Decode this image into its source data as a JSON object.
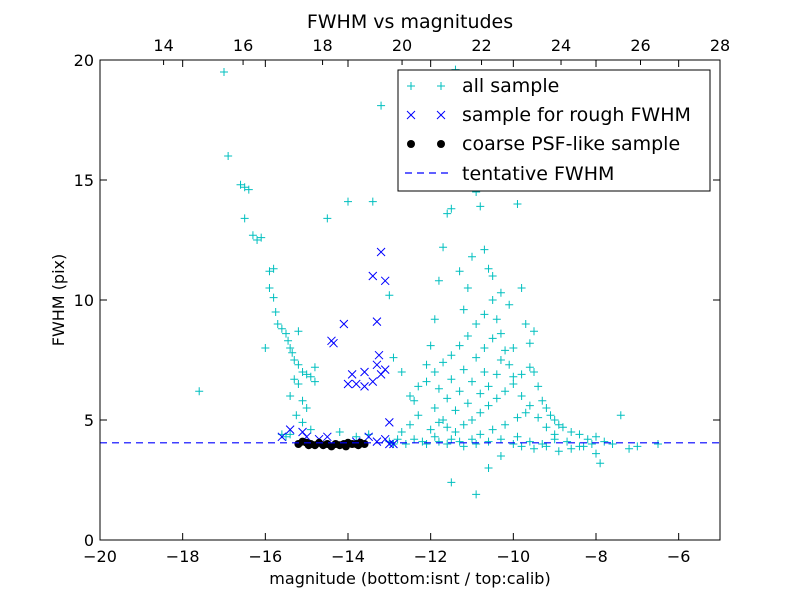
{
  "chart_data": {
    "type": "scatter",
    "title": "FWHM vs magnitudes",
    "xlabel": "magnitude (bottom:isnt / top:calib)",
    "ylabel": "FWHM (pix)",
    "xlim": [
      -20,
      -5
    ],
    "ylim": [
      0,
      20
    ],
    "top_xlim": [
      12.4,
      28
    ],
    "x_ticks": [
      -20,
      -18,
      -16,
      -14,
      -12,
      -10,
      -8,
      -6
    ],
    "x_tick_labels": [
      "−20",
      "−18",
      "−16",
      "−14",
      "−12",
      "−10",
      "−8",
      "−6"
    ],
    "top_ticks": [
      14,
      16,
      18,
      20,
      22,
      24,
      26,
      28
    ],
    "top_tick_labels": [
      "14",
      "16",
      "18",
      "20",
      "22",
      "24",
      "26",
      "28"
    ],
    "y_ticks": [
      0,
      5,
      10,
      15,
      20
    ],
    "y_tick_labels": [
      "0",
      "5",
      "10",
      "15",
      "20"
    ],
    "legend_position": "top-right",
    "legend": [
      {
        "label": "all sample",
        "marker": "plus",
        "color": "#00bfbf"
      },
      {
        "label": "sample for rough FWHM",
        "marker": "x",
        "color": "#0000ff"
      },
      {
        "label": "coarse PSF-like sample",
        "marker": "dot",
        "color": "#000000"
      },
      {
        "label": "tentative FWHM",
        "marker": "dash",
        "color": "#0000ff"
      }
    ],
    "tentative_fwhm": 4.05,
    "series": [
      {
        "name": "all sample",
        "marker": "plus",
        "color": "#00bfbf",
        "points": [
          [
            -17.0,
            19.5
          ],
          [
            -16.9,
            16.0
          ],
          [
            -16.6,
            14.8
          ],
          [
            -16.5,
            14.7
          ],
          [
            -16.4,
            14.6
          ],
          [
            -16.5,
            13.4
          ],
          [
            -16.3,
            12.7
          ],
          [
            -16.2,
            12.5
          ],
          [
            -16.1,
            12.6
          ],
          [
            -17.6,
            6.2
          ],
          [
            -15.9,
            11.2
          ],
          [
            -15.8,
            11.3
          ],
          [
            -15.9,
            10.5
          ],
          [
            -15.8,
            10.1
          ],
          [
            -15.75,
            9.5
          ],
          [
            -15.7,
            9.0
          ],
          [
            -15.6,
            8.8
          ],
          [
            -15.5,
            8.6
          ],
          [
            -15.45,
            8.3
          ],
          [
            -15.4,
            8.0
          ],
          [
            -15.35,
            7.8
          ],
          [
            -15.3,
            7.5
          ],
          [
            -15.2,
            7.3
          ],
          [
            -15.1,
            7.0
          ],
          [
            -15.0,
            6.9
          ],
          [
            -14.9,
            6.8
          ],
          [
            -15.3,
            6.7
          ],
          [
            -15.2,
            6.5
          ],
          [
            -14.8,
            6.6
          ],
          [
            -15.4,
            6.0
          ],
          [
            -15.1,
            5.8
          ],
          [
            -15.0,
            5.5
          ],
          [
            -15.25,
            5.2
          ],
          [
            -15.1,
            4.9
          ],
          [
            -14.9,
            4.6
          ],
          [
            -15.6,
            4.4
          ],
          [
            -15.5,
            4.3
          ],
          [
            -15.4,
            4.4
          ],
          [
            -14.5,
            13.4
          ],
          [
            -14.0,
            14.1
          ],
          [
            -13.4,
            14.1
          ],
          [
            -13.2,
            18.1
          ],
          [
            -13.0,
            10.2
          ],
          [
            -12.9,
            7.6
          ],
          [
            -12.7,
            7.0
          ],
          [
            -12.5,
            6.0
          ],
          [
            -12.4,
            5.8
          ],
          [
            -12.3,
            6.4
          ],
          [
            -12.1,
            7.3
          ],
          [
            -12.0,
            8.1
          ],
          [
            -11.9,
            9.2
          ],
          [
            -11.8,
            10.8
          ],
          [
            -11.7,
            12.2
          ],
          [
            -11.6,
            13.6
          ],
          [
            -11.5,
            13.8
          ],
          [
            -11.4,
            19.6
          ],
          [
            -11.3,
            11.2
          ],
          [
            -11.2,
            9.6
          ],
          [
            -11.1,
            10.5
          ],
          [
            -11.0,
            11.8
          ],
          [
            -10.9,
            14.5
          ],
          [
            -10.8,
            13.9
          ],
          [
            -10.7,
            12.1
          ],
          [
            -10.6,
            11.3
          ],
          [
            -10.5,
            10.0
          ],
          [
            -10.4,
            9.2
          ],
          [
            -10.3,
            8.6
          ],
          [
            -10.2,
            7.9
          ],
          [
            -10.1,
            7.3
          ],
          [
            -10.0,
            6.8
          ],
          [
            -9.9,
            14.0
          ],
          [
            -9.8,
            10.5
          ],
          [
            -9.7,
            9.0
          ],
          [
            -9.6,
            8.2
          ],
          [
            -9.5,
            7.0
          ],
          [
            -9.4,
            6.4
          ],
          [
            -9.3,
            5.8
          ],
          [
            -9.2,
            5.5
          ],
          [
            -9.1,
            5.2
          ],
          [
            -9.0,
            5.0
          ],
          [
            -8.9,
            4.8
          ],
          [
            -8.8,
            4.7
          ],
          [
            -8.6,
            4.5
          ],
          [
            -8.4,
            4.4
          ],
          [
            -8.2,
            4.2
          ],
          [
            -8.0,
            4.3
          ],
          [
            -7.8,
            4.1
          ],
          [
            -7.6,
            4.0
          ],
          [
            -7.4,
            5.2
          ],
          [
            -7.2,
            3.8
          ],
          [
            -7.0,
            3.9
          ],
          [
            -6.5,
            4.0
          ],
          [
            -11.5,
            2.4
          ],
          [
            -10.9,
            1.9
          ],
          [
            -10.6,
            3.0
          ],
          [
            -10.3,
            3.5
          ],
          [
            -12.8,
            4.2
          ],
          [
            -12.6,
            4.0
          ],
          [
            -12.2,
            4.1
          ],
          [
            -11.9,
            4.3
          ],
          [
            -11.6,
            4.0
          ],
          [
            -11.3,
            4.1
          ],
          [
            -11.0,
            4.2
          ],
          [
            -10.8,
            4.4
          ],
          [
            -10.5,
            4.6
          ],
          [
            -10.2,
            4.8
          ],
          [
            -9.9,
            5.1
          ],
          [
            -9.7,
            5.3
          ],
          [
            -11.7,
            5.0
          ],
          [
            -11.4,
            5.4
          ],
          [
            -11.1,
            5.7
          ],
          [
            -10.8,
            6.1
          ],
          [
            -10.6,
            6.4
          ],
          [
            -10.4,
            6.9
          ],
          [
            -11.8,
            6.3
          ],
          [
            -11.5,
            6.7
          ],
          [
            -11.2,
            7.1
          ],
          [
            -10.9,
            7.6
          ],
          [
            -10.7,
            8.0
          ],
          [
            -10.5,
            8.4
          ],
          [
            -11.9,
            5.5
          ],
          [
            -11.6,
            5.9
          ],
          [
            -11.3,
            6.2
          ],
          [
            -11.0,
            6.6
          ],
          [
            -10.7,
            7.0
          ],
          [
            -10.3,
            7.5
          ],
          [
            -10.0,
            8.0
          ],
          [
            -9.8,
            6.0
          ],
          [
            -9.6,
            5.6
          ],
          [
            -9.4,
            5.1
          ],
          [
            -9.2,
            4.7
          ],
          [
            -9.0,
            4.4
          ],
          [
            -12.0,
            4.6
          ],
          [
            -11.8,
            4.9
          ],
          [
            -11.6,
            4.7
          ],
          [
            -11.4,
            4.5
          ],
          [
            -11.2,
            4.8
          ],
          [
            -11.0,
            5.0
          ],
          [
            -10.8,
            5.3
          ],
          [
            -10.6,
            5.6
          ],
          [
            -10.4,
            5.9
          ],
          [
            -10.2,
            6.2
          ],
          [
            -10.0,
            6.5
          ],
          [
            -9.8,
            6.9
          ],
          [
            -9.6,
            7.2
          ],
          [
            -9.5,
            8.7
          ],
          [
            -10.9,
            9.0
          ],
          [
            -11.1,
            8.5
          ],
          [
            -11.3,
            8.1
          ],
          [
            -11.5,
            7.7
          ],
          [
            -11.7,
            7.4
          ],
          [
            -11.9,
            7.0
          ],
          [
            -12.1,
            6.6
          ],
          [
            -12.3,
            5.2
          ],
          [
            -12.5,
            4.8
          ],
          [
            -12.7,
            4.5
          ],
          [
            -10.1,
            9.8
          ],
          [
            -10.3,
            10.3
          ],
          [
            -10.5,
            11.0
          ],
          [
            -10.7,
            9.4
          ],
          [
            -10.0,
            4.0
          ],
          [
            -9.8,
            3.9
          ],
          [
            -9.5,
            3.8
          ],
          [
            -9.2,
            3.9
          ],
          [
            -8.9,
            3.7
          ],
          [
            -8.6,
            3.8
          ],
          [
            -8.3,
            3.9
          ],
          [
            -8.0,
            3.6
          ],
          [
            -13.0,
            4.1
          ],
          [
            -12.9,
            4.0
          ],
          [
            -12.4,
            4.2
          ],
          [
            -12.1,
            4.0
          ],
          [
            -11.8,
            4.1
          ],
          [
            -11.5,
            4.2
          ],
          [
            -11.2,
            3.9
          ],
          [
            -10.9,
            4.0
          ],
          [
            -10.6,
            4.1
          ],
          [
            -10.3,
            4.2
          ],
          [
            -9.9,
            4.3
          ],
          [
            -9.6,
            4.1
          ],
          [
            -9.3,
            4.0
          ],
          [
            -9.0,
            4.2
          ],
          [
            -8.7,
            4.1
          ],
          [
            -8.4,
            3.9
          ],
          [
            -8.1,
            4.0
          ],
          [
            -7.9,
            3.2
          ],
          [
            -13.8,
            4.3
          ],
          [
            -13.5,
            4.4
          ],
          [
            -14.2,
            4.5
          ],
          [
            -16.0,
            8.0
          ],
          [
            -15.2,
            8.7
          ],
          [
            -14.8,
            7.2
          ]
        ]
      },
      {
        "name": "sample for rough FWHM",
        "marker": "x",
        "color": "#0000ff",
        "points": [
          [
            -13.2,
            12.0
          ],
          [
            -13.4,
            11.0
          ],
          [
            -13.1,
            10.8
          ],
          [
            -13.3,
            9.1
          ],
          [
            -14.1,
            9.0
          ],
          [
            -14.4,
            8.3
          ],
          [
            -14.35,
            8.2
          ],
          [
            -13.25,
            7.7
          ],
          [
            -13.3,
            7.3
          ],
          [
            -13.1,
            7.1
          ],
          [
            -13.6,
            7.0
          ],
          [
            -13.9,
            6.9
          ],
          [
            -13.2,
            6.9
          ],
          [
            -13.4,
            6.6
          ],
          [
            -13.8,
            6.5
          ],
          [
            -13.6,
            6.4
          ],
          [
            -14.0,
            6.5
          ],
          [
            -13.0,
            4.9
          ],
          [
            -15.1,
            4.5
          ],
          [
            -15.4,
            4.6
          ],
          [
            -15.6,
            4.3
          ],
          [
            -13.5,
            4.3
          ],
          [
            -13.1,
            4.2
          ],
          [
            -14.7,
            4.2
          ],
          [
            -13.8,
            4.1
          ],
          [
            -13.3,
            4.1
          ],
          [
            -13.0,
            4.0
          ],
          [
            -12.9,
            4.0
          ],
          [
            -15.0,
            4.3
          ],
          [
            -14.5,
            4.3
          ]
        ]
      },
      {
        "name": "coarse PSF-like sample",
        "marker": "dot",
        "color": "#000000",
        "points": [
          [
            -15.2,
            4.0
          ],
          [
            -15.0,
            4.05
          ],
          [
            -14.9,
            4.0
          ],
          [
            -14.8,
            3.95
          ],
          [
            -14.7,
            4.05
          ],
          [
            -14.6,
            3.95
          ],
          [
            -14.4,
            3.9
          ],
          [
            -14.3,
            4.0
          ],
          [
            -14.1,
            4.0
          ],
          [
            -14.0,
            4.05
          ],
          [
            -13.9,
            4.0
          ],
          [
            -13.8,
            4.0
          ],
          [
            -13.7,
            4.05
          ],
          [
            -13.6,
            4.0
          ],
          [
            -14.2,
            3.95
          ],
          [
            -14.5,
            4.0
          ],
          [
            -15.1,
            4.1
          ],
          [
            -14.95,
            3.95
          ],
          [
            -13.75,
            3.95
          ],
          [
            -14.05,
            3.9
          ]
        ]
      }
    ]
  }
}
